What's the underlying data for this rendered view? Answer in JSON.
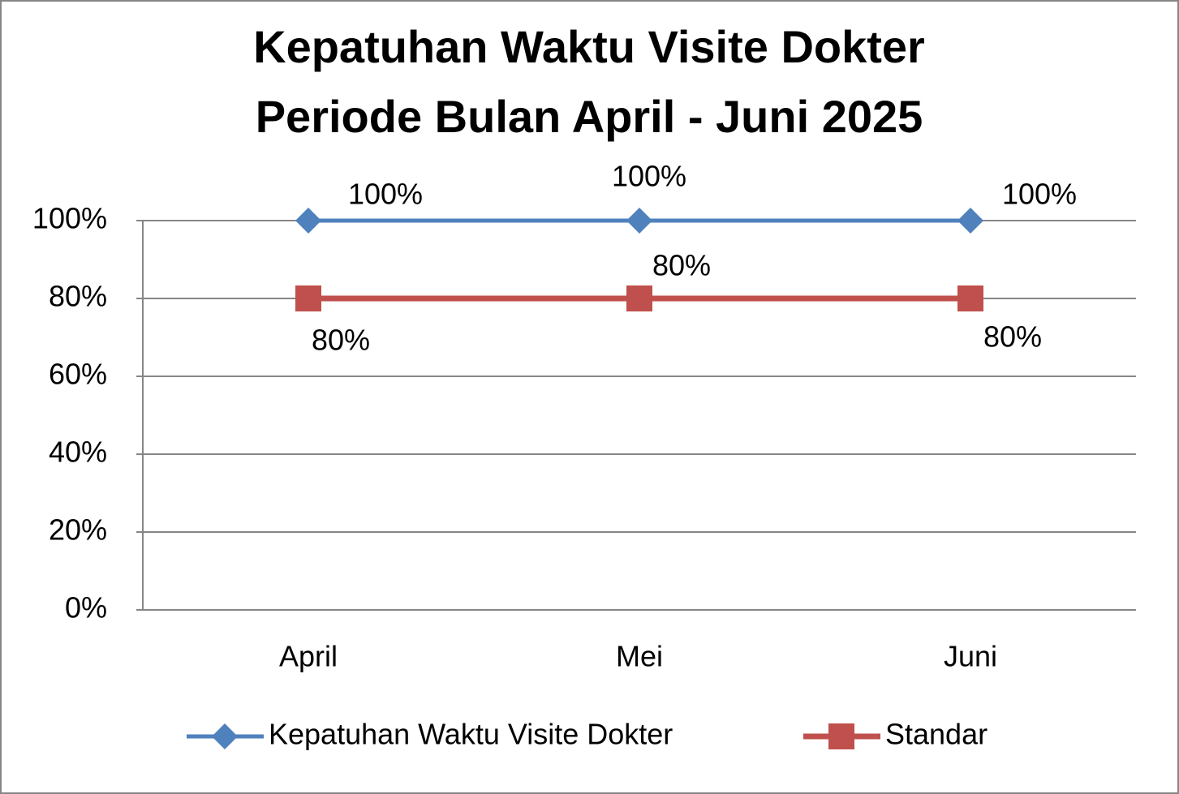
{
  "chart_data": {
    "type": "line",
    "title": [
      "Kepatuhan Waktu Visite Dokter",
      "Periode Bulan April - Juni 2025"
    ],
    "categories": [
      "April",
      "Mei",
      "Juni"
    ],
    "series": [
      {
        "name": "Kepatuhan Waktu Visite Dokter",
        "color": "#4f81bd",
        "marker": "diamond",
        "values": [
          100,
          100,
          100
        ],
        "value_labels": [
          "100%",
          "100%",
          "100%"
        ]
      },
      {
        "name": "Standar",
        "color": "#c0504d",
        "marker": "square",
        "values": [
          80,
          80,
          80
        ],
        "value_labels": [
          "80%",
          "80%",
          "80%"
        ]
      }
    ],
    "ylim": [
      0,
      100
    ],
    "yticks": [
      {
        "value": 0,
        "label": "0%"
      },
      {
        "value": 20,
        "label": "20%"
      },
      {
        "value": 40,
        "label": "40%"
      },
      {
        "value": 60,
        "label": "60%"
      },
      {
        "value": 80,
        "label": "80%"
      },
      {
        "value": 100,
        "label": "100%"
      }
    ],
    "grid": true,
    "legend": "bottom"
  }
}
